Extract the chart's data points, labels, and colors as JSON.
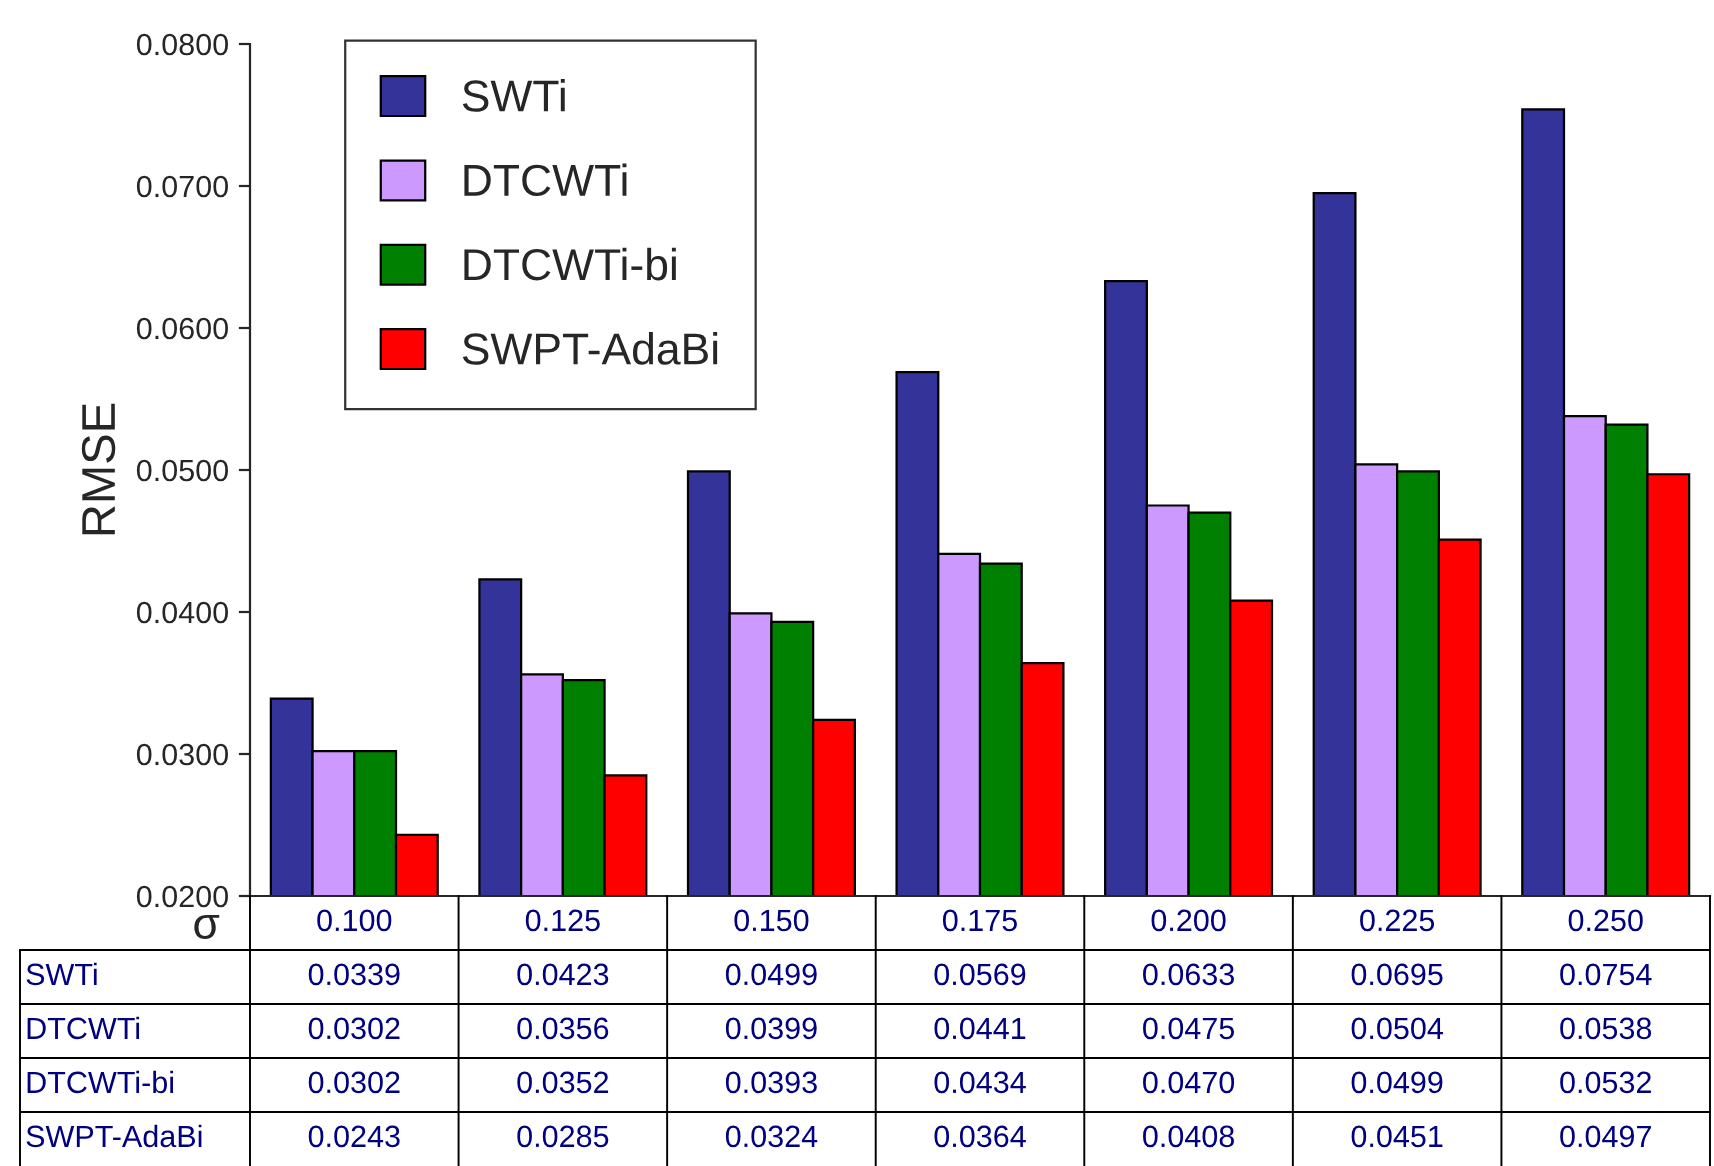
{
  "chart_data": {
    "type": "bar",
    "xlabel": "σ",
    "ylabel": "RMSE",
    "categories": [
      "0.100",
      "0.125",
      "0.150",
      "0.175",
      "0.200",
      "0.225",
      "0.250"
    ],
    "series": [
      {
        "name": "SWTi",
        "color": "#333399",
        "values": [
          0.0339,
          0.0423,
          0.0499,
          0.0569,
          0.0633,
          0.0695,
          0.0754
        ],
        "value_labels": [
          "0.0339",
          "0.0423",
          "0.0499",
          "0.0569",
          "0.0633",
          "0.0695",
          "0.0754"
        ]
      },
      {
        "name": "DTCWTi",
        "color": "#cc99ff",
        "values": [
          0.0302,
          0.0356,
          0.0399,
          0.0441,
          0.0475,
          0.0504,
          0.0538
        ],
        "value_labels": [
          "0.0302",
          "0.0356",
          "0.0399",
          "0.0441",
          "0.0475",
          "0.0504",
          "0.0538"
        ]
      },
      {
        "name": "DTCWTi-bi",
        "color": "#008000",
        "values": [
          0.0302,
          0.0352,
          0.0393,
          0.0434,
          0.047,
          0.0499,
          0.0532
        ],
        "value_labels": [
          "0.0302",
          "0.0352",
          "0.0393",
          "0.0434",
          "0.0470",
          "0.0499",
          "0.0532"
        ]
      },
      {
        "name": "SWPT-AdaBi",
        "color": "#ff0000",
        "values": [
          0.0243,
          0.0285,
          0.0324,
          0.0364,
          0.0408,
          0.0451,
          0.0497
        ],
        "value_labels": [
          "0.0243",
          "0.0285",
          "0.0324",
          "0.0364",
          "0.0408",
          "0.0451",
          "0.0497"
        ]
      }
    ],
    "ylim": [
      0.02,
      0.08
    ],
    "yticks": [
      {
        "value": 0.02,
        "label": "0.0200"
      },
      {
        "value": 0.03,
        "label": "0.0300"
      },
      {
        "value": 0.04,
        "label": "0.0400"
      },
      {
        "value": 0.05,
        "label": "0.0500"
      },
      {
        "value": 0.06,
        "label": "0.0600"
      },
      {
        "value": 0.07,
        "label": "0.0700"
      },
      {
        "value": 0.08,
        "label": "0.0800"
      }
    ],
    "legend": "top left",
    "grid": false
  }
}
